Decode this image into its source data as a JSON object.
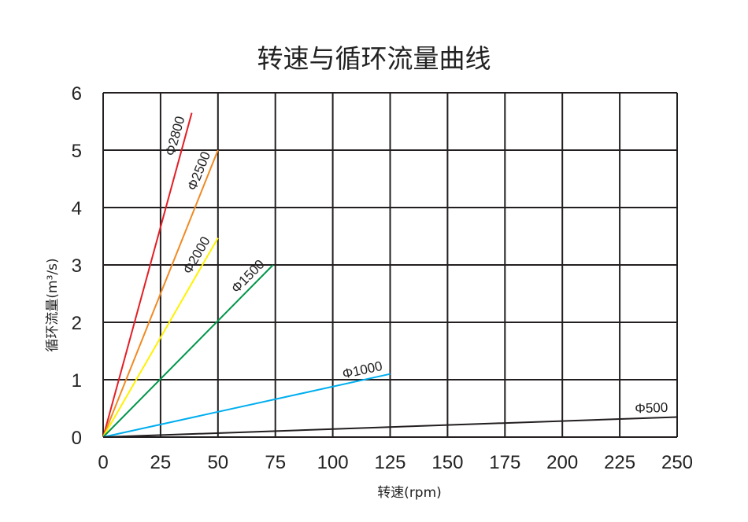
{
  "chart_data": {
    "type": "line",
    "title": "转速与循环流量曲线",
    "xlabel": "转速(rpm)",
    "ylabel": "循环流量(m³/s)",
    "xlim": [
      0,
      250
    ],
    "ylim": [
      0,
      6
    ],
    "x_ticks": [
      "0",
      "25",
      "50",
      "75",
      "100",
      "125",
      "150",
      "175",
      "200",
      "225",
      "250"
    ],
    "y_ticks": [
      "0",
      "1",
      "2",
      "3",
      "4",
      "5",
      "6"
    ],
    "grid": true,
    "series": [
      {
        "name": "Φ2800",
        "color": "#e31e25",
        "x": [
          0,
          38.6
        ],
        "y": [
          0,
          5.65
        ]
      },
      {
        "name": "Φ2500",
        "color": "#f08a24",
        "x": [
          0,
          50
        ],
        "y": [
          0,
          5.0
        ]
      },
      {
        "name": "Φ2000",
        "color": "#fff200",
        "x": [
          0,
          50
        ],
        "y": [
          0,
          3.47
        ]
      },
      {
        "name": "Φ1500",
        "color": "#00964b",
        "x": [
          0,
          74
        ],
        "y": [
          0,
          3.0
        ]
      },
      {
        "name": "Φ1000",
        "color": "#00aeef",
        "x": [
          0,
          125
        ],
        "y": [
          0,
          1.1
        ]
      },
      {
        "name": "Φ500",
        "color": "#231f20",
        "x": [
          0,
          250
        ],
        "y": [
          0,
          0.35
        ]
      }
    ]
  }
}
